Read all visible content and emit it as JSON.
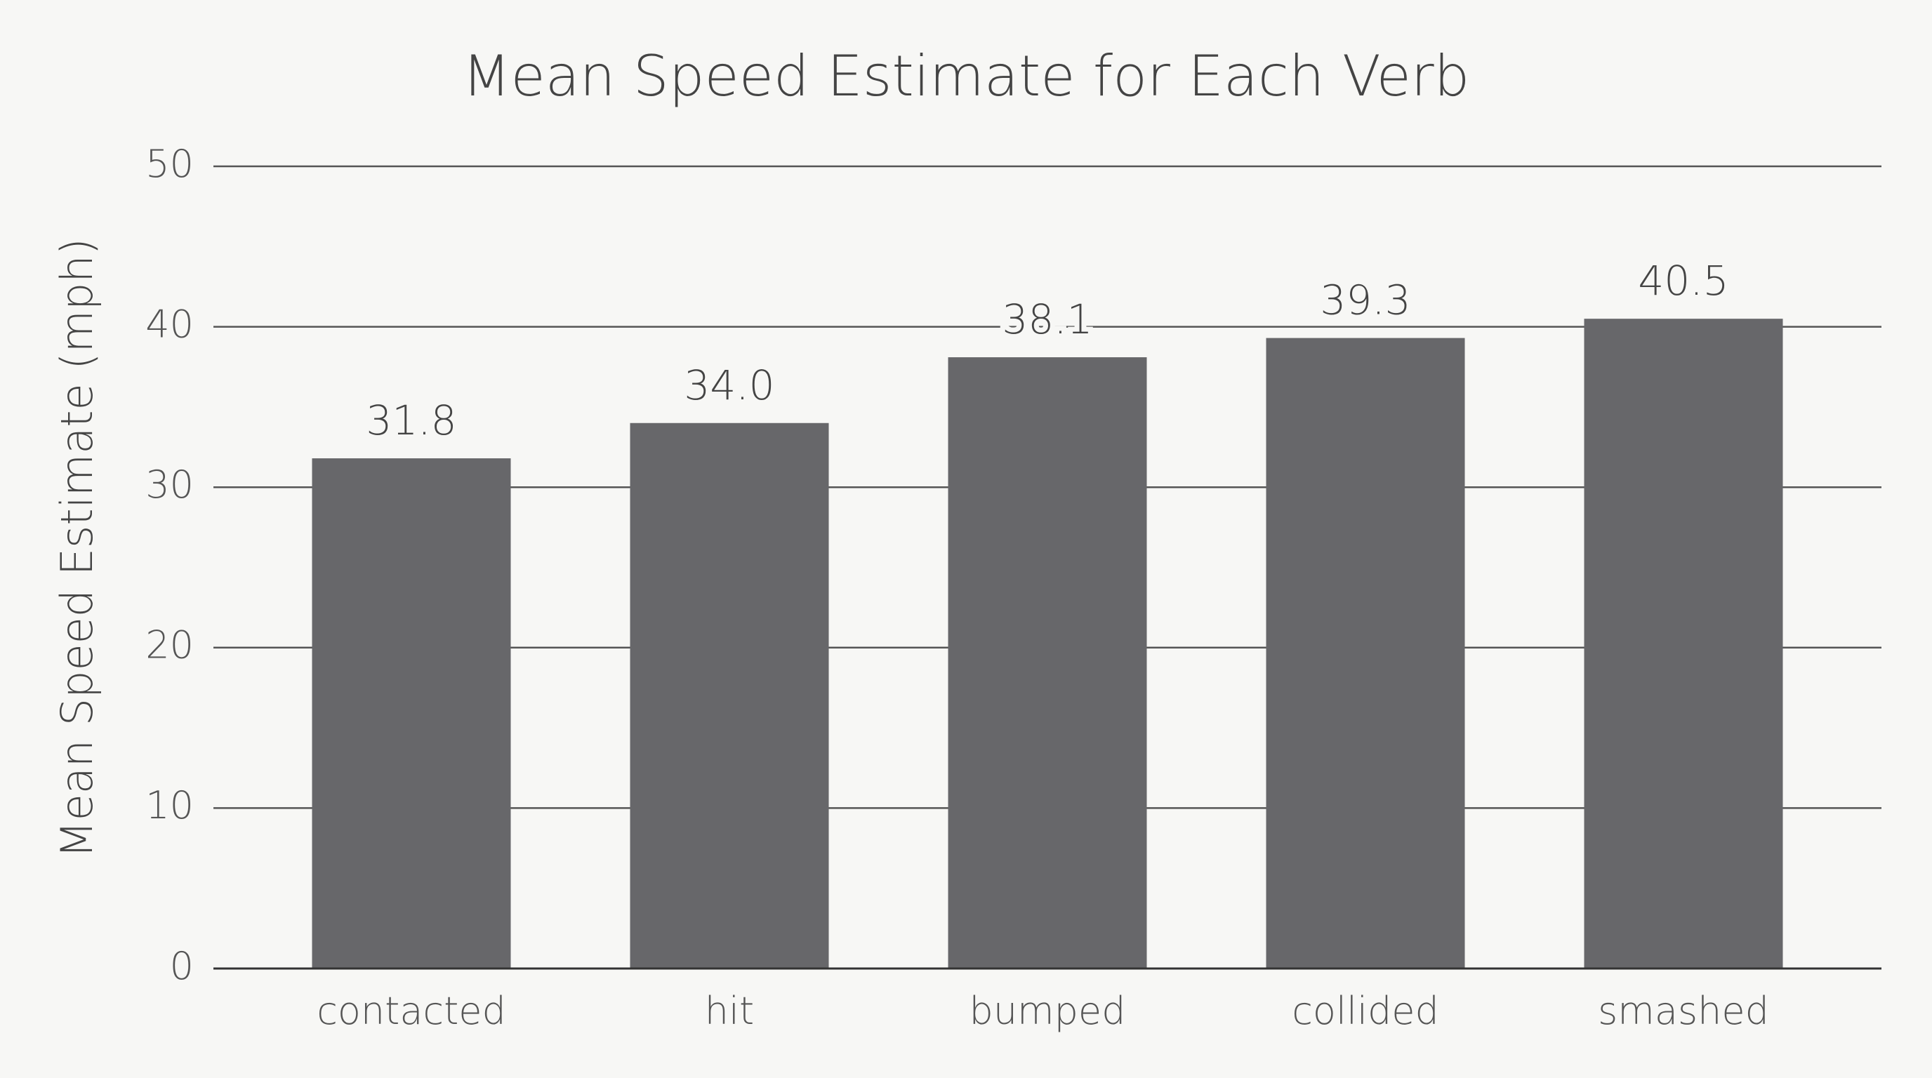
{
  "chart_data": {
    "type": "bar",
    "title": "Mean Speed Estimate for Each Verb",
    "y_label": "Mean Speed Estimate (mph)",
    "categories": [
      "contacted",
      "hit",
      "bumped",
      "collided",
      "smashed"
    ],
    "values": [
      31.8,
      34,
      38.1,
      39.3,
      40.5
    ],
    "value_labels": [
      "31.8",
      "34.0",
      "38.1",
      "39.3",
      "40.5"
    ],
    "color": "#67676a",
    "ylim": [
      0,
      50
    ],
    "yticks": [
      0,
      10,
      20,
      30,
      40,
      50
    ],
    "grid": true
  }
}
